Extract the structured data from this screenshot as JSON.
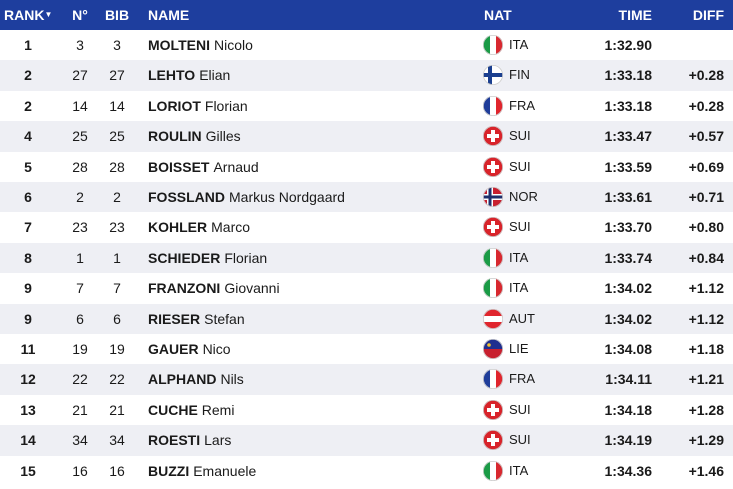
{
  "header": {
    "rank": "RANK",
    "no": "N°",
    "bib": "BIB",
    "name": "NAME",
    "nat": "NAT",
    "time": "TIME",
    "diff": "DIFF"
  },
  "rows": [
    {
      "rank": "1",
      "no": "3",
      "bib": "3",
      "surname": "MOLTENI",
      "firstname": "Nicolo",
      "nat": "ITA",
      "time": "1:32.90",
      "diff": null
    },
    {
      "rank": "2",
      "no": "27",
      "bib": "27",
      "surname": "LEHTO",
      "firstname": "Elian",
      "nat": "FIN",
      "time": "1:33.18",
      "diff": "+0.28"
    },
    {
      "rank": "2",
      "no": "14",
      "bib": "14",
      "surname": "LORIOT",
      "firstname": "Florian",
      "nat": "FRA",
      "time": "1:33.18",
      "diff": "+0.28"
    },
    {
      "rank": "4",
      "no": "25",
      "bib": "25",
      "surname": "ROULIN",
      "firstname": "Gilles",
      "nat": "SUI",
      "time": "1:33.47",
      "diff": "+0.57"
    },
    {
      "rank": "5",
      "no": "28",
      "bib": "28",
      "surname": "BOISSET",
      "firstname": "Arnaud",
      "nat": "SUI",
      "time": "1:33.59",
      "diff": "+0.69"
    },
    {
      "rank": "6",
      "no": "2",
      "bib": "2",
      "surname": "FOSSLAND",
      "firstname": "Markus Nordgaard",
      "nat": "NOR",
      "time": "1:33.61",
      "diff": "+0.71"
    },
    {
      "rank": "7",
      "no": "23",
      "bib": "23",
      "surname": "KOHLER",
      "firstname": "Marco",
      "nat": "SUI",
      "time": "1:33.70",
      "diff": "+0.80"
    },
    {
      "rank": "8",
      "no": "1",
      "bib": "1",
      "surname": "SCHIEDER",
      "firstname": "Florian",
      "nat": "ITA",
      "time": "1:33.74",
      "diff": "+0.84"
    },
    {
      "rank": "9",
      "no": "7",
      "bib": "7",
      "surname": "FRANZONI",
      "firstname": "Giovanni",
      "nat": "ITA",
      "time": "1:34.02",
      "diff": "+1.12"
    },
    {
      "rank": "9",
      "no": "6",
      "bib": "6",
      "surname": "RIESER",
      "firstname": "Stefan",
      "nat": "AUT",
      "time": "1:34.02",
      "diff": "+1.12"
    },
    {
      "rank": "11",
      "no": "19",
      "bib": "19",
      "surname": "GAUER",
      "firstname": "Nico",
      "nat": "LIE",
      "time": "1:34.08",
      "diff": "+1.18"
    },
    {
      "rank": "12",
      "no": "22",
      "bib": "22",
      "surname": "ALPHAND",
      "firstname": "Nils",
      "nat": "FRA",
      "time": "1:34.11",
      "diff": "+1.21"
    },
    {
      "rank": "13",
      "no": "21",
      "bib": "21",
      "surname": "CUCHE",
      "firstname": "Remi",
      "nat": "SUI",
      "time": "1:34.18",
      "diff": "+1.28"
    },
    {
      "rank": "14",
      "no": "34",
      "bib": "34",
      "surname": "ROESTI",
      "firstname": "Lars",
      "nat": "SUI",
      "time": "1:34.19",
      "diff": "+1.29"
    },
    {
      "rank": "15",
      "no": "16",
      "bib": "16",
      "surname": "BUZZI",
      "firstname": "Emanuele",
      "nat": "ITA",
      "time": "1:34.36",
      "diff": "+1.46"
    }
  ]
}
